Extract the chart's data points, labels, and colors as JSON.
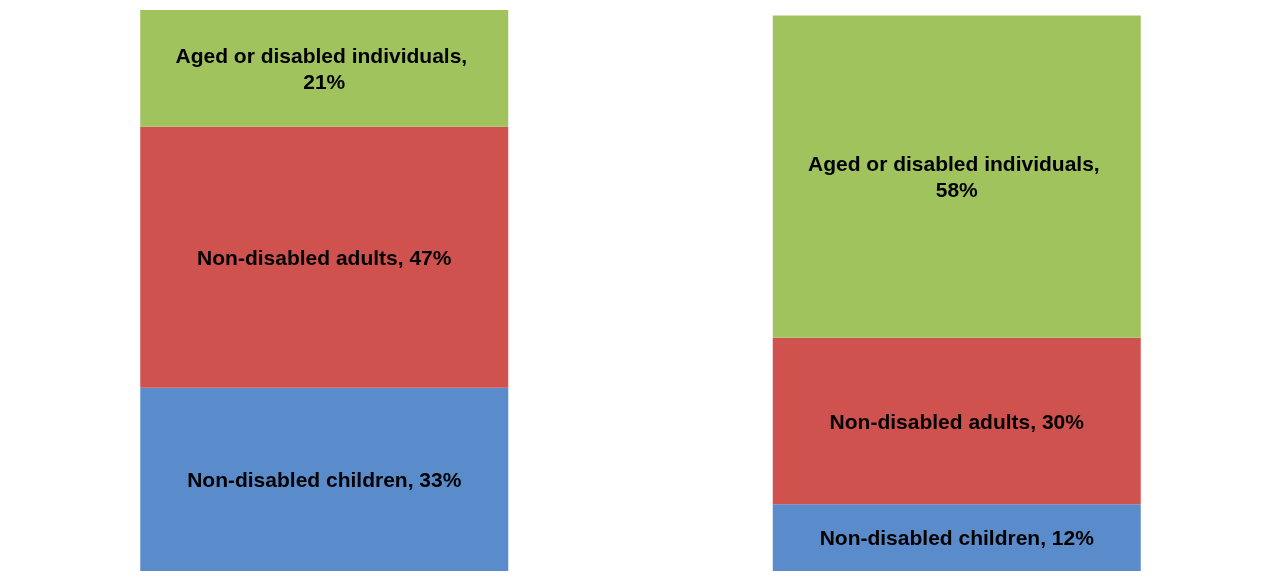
{
  "chart_data": {
    "type": "bar",
    "stacked": true,
    "categories": [
      null,
      null
    ],
    "ylim": [
      0,
      101
    ],
    "tick_labels": false,
    "series": [
      {
        "color": "#5a8ccc",
        "values": [
          33,
          12
        ],
        "value_labels": [
          "Non-disabled children, 33%",
          "Non-disabled children, 12%"
        ]
      },
      {
        "color": "#d0524f",
        "values": [
          47,
          30
        ],
        "value_labels": [
          "Non-disabled adults, 47%",
          "Non-disabled adults, 30%"
        ]
      },
      {
        "color": "#a0c35e",
        "values": [
          21,
          58
        ],
        "value_labels": [
          "Aged or disabled individuals, 21%",
          "Aged or disabled individuals, 58%"
        ]
      }
    ]
  }
}
